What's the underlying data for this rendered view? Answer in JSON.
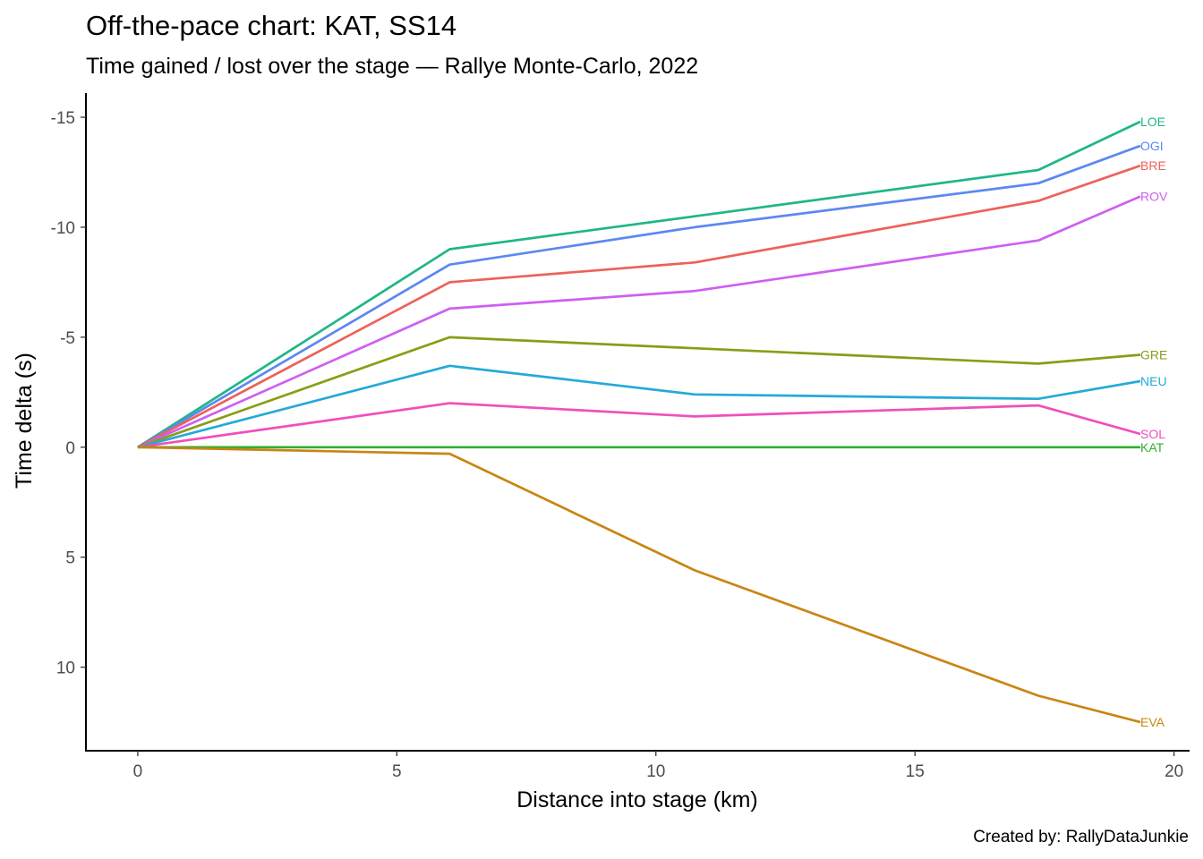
{
  "chart_data": {
    "type": "line",
    "title": "Off-the-pace chart: KAT, SS14",
    "subtitle": "Time gained / lost over the stage — Rallye Monte-Carlo, 2022",
    "xlabel": "Distance into stage (km)",
    "ylabel": "Time delta (s)",
    "caption": "Created by: RallyDataJunkie",
    "xlim": [
      -1,
      20.3
    ],
    "ylim": [
      -16.1,
      13.8
    ],
    "y_reversed": true,
    "grid": false,
    "legend": "none (direct labels at line ends)",
    "x_ticks": [
      {
        "value": 0,
        "label": "0"
      },
      {
        "value": 5,
        "label": "5"
      },
      {
        "value": 10,
        "label": "10"
      },
      {
        "value": 15,
        "label": "15"
      },
      {
        "value": 20,
        "label": "20"
      }
    ],
    "y_ticks": [
      {
        "value": -15,
        "label": "-15"
      },
      {
        "value": -10,
        "label": "-10"
      },
      {
        "value": -5,
        "label": "-5"
      },
      {
        "value": 0,
        "label": "0"
      },
      {
        "value": 5,
        "label": "5"
      },
      {
        "value": 10,
        "label": "10"
      }
    ],
    "x": [
      0,
      6.02,
      10.75,
      17.38,
      19.35
    ],
    "series": [
      {
        "name": "LOE",
        "color": "#1fb68a",
        "values": [
          0,
          -9.0,
          -10.5,
          -12.6,
          -14.8
        ]
      },
      {
        "name": "OGI",
        "color": "#5c88f0",
        "values": [
          0,
          -8.3,
          -10.0,
          -12.0,
          -13.7
        ]
      },
      {
        "name": "BRE",
        "color": "#ec6259",
        "values": [
          0,
          -7.5,
          -8.4,
          -11.2,
          -12.8
        ]
      },
      {
        "name": "ROV",
        "color": "#cf5ef2",
        "values": [
          0,
          -6.3,
          -7.1,
          -9.4,
          -11.4
        ]
      },
      {
        "name": "GRE",
        "color": "#899d16",
        "values": [
          0,
          -5.0,
          -4.5,
          -3.8,
          -4.2
        ]
      },
      {
        "name": "NEU",
        "color": "#24aad8",
        "values": [
          0,
          -3.7,
          -2.4,
          -2.2,
          -3.0
        ]
      },
      {
        "name": "SOL",
        "color": "#f04fbb",
        "values": [
          0,
          -2.0,
          -1.4,
          -1.9,
          -0.6
        ]
      },
      {
        "name": "KAT",
        "color": "#31ad2e",
        "values": [
          0,
          0,
          0,
          0,
          0
        ]
      },
      {
        "name": "EVA",
        "color": "#c98512",
        "values": [
          0,
          0.3,
          5.6,
          11.3,
          12.5
        ]
      }
    ]
  }
}
